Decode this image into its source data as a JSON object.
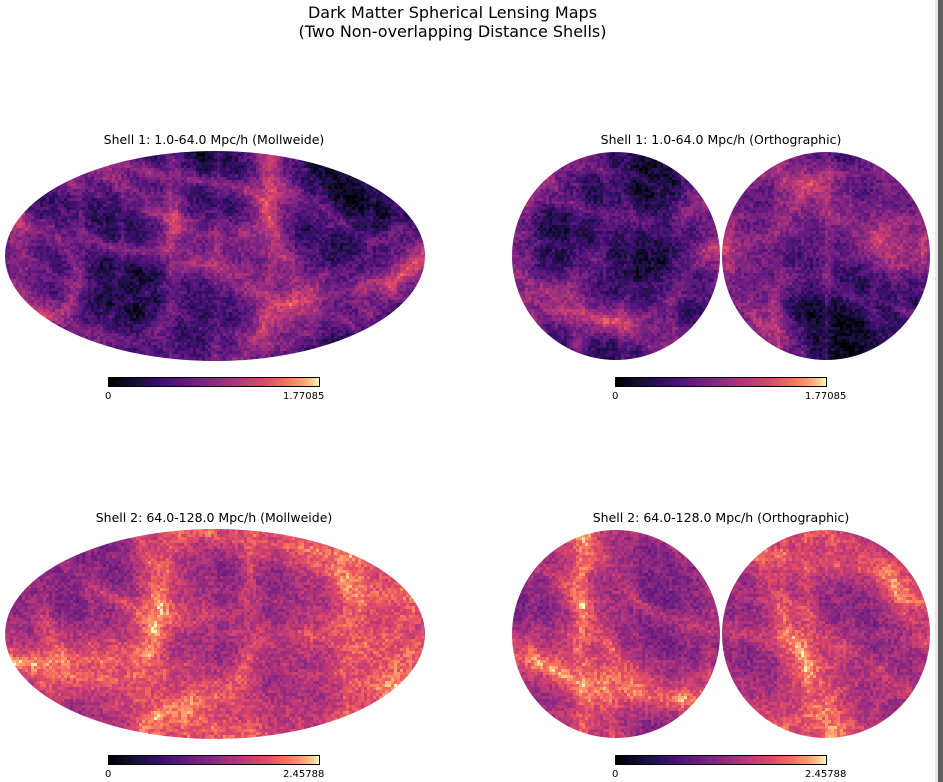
{
  "figure": {
    "title_line1": "Dark Matter Spherical Lensing Maps",
    "title_line2": "(Two Non-overlapping Distance Shells)"
  },
  "chart_data": [
    {
      "type": "heatmap",
      "title": "Shell 1: 1.0-64.0 Mpc/h (Mollweide)",
      "projection": "mollweide",
      "colormap": "magma",
      "colorbar": {
        "min": "0",
        "max": "1.77085",
        "placement": "bottom"
      }
    },
    {
      "type": "heatmap",
      "title": "Shell 1: 1.0-64.0 Mpc/h (Orthographic)",
      "projection": "orthographic",
      "colormap": "magma",
      "colorbar": {
        "min": "0",
        "max": "1.77085",
        "placement": "bottom"
      }
    },
    {
      "type": "heatmap",
      "title": "Shell 2: 64.0-128.0 Mpc/h (Mollweide)",
      "projection": "mollweide",
      "colormap": "magma",
      "colorbar": {
        "min": "0",
        "max": "2.45788",
        "placement": "bottom"
      }
    },
    {
      "type": "heatmap",
      "title": "Shell 2: 64.0-128.0 Mpc/h (Orthographic)",
      "projection": "orthographic",
      "colormap": "magma",
      "colorbar": {
        "min": "0",
        "max": "2.45788",
        "placement": "bottom"
      }
    }
  ]
}
